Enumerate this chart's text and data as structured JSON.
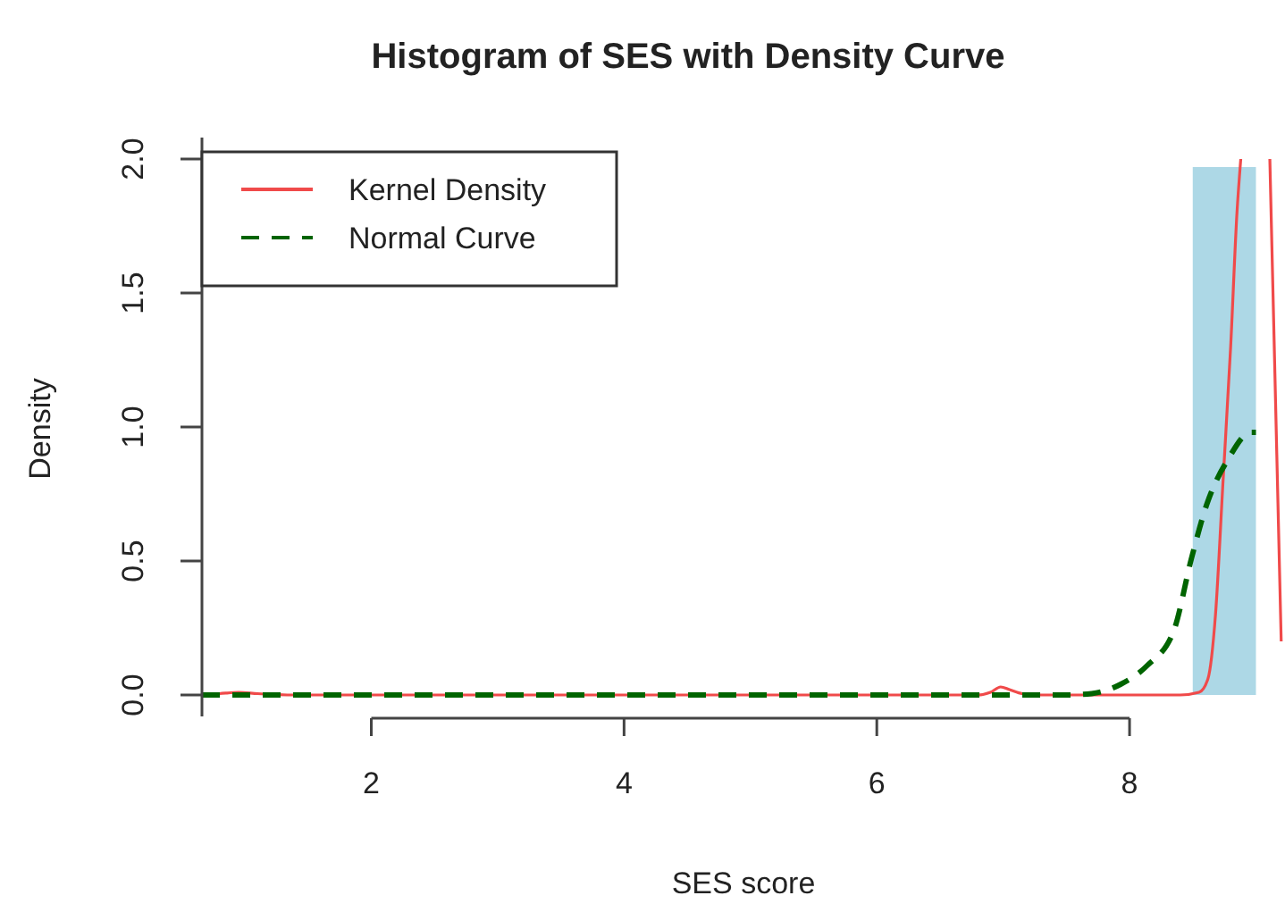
{
  "chart_data": {
    "type": "histogram",
    "title": "Histogram of SES with Density Curve",
    "xlabel": "SES score",
    "ylabel": "Density",
    "bins": [
      8.5,
      9.0
    ],
    "values": [
      1.97
    ],
    "color": "#add8e6",
    "xlim": [
      0.66,
      9.23
    ],
    "ylim": [
      -0.08,
      2.08
    ],
    "xticks": [
      2,
      4,
      6,
      8
    ],
    "yticks": [
      {
        "value": 0,
        "label": "0.0"
      },
      {
        "value": 0.5,
        "label": "0.5"
      },
      {
        "value": 1,
        "label": "1.0"
      },
      {
        "value": 1.5,
        "label": "1.5"
      },
      {
        "value": 2,
        "label": "2.0"
      }
    ],
    "grid": false,
    "legend": "top left",
    "series": [
      {
        "name": "Kernel Density",
        "type": "line",
        "color": "#f04a4a",
        "line_style": "solid",
        "x": [
          0.66,
          0.8,
          0.95,
          1.1,
          1.4,
          2,
          3,
          4,
          5,
          6,
          6.8,
          6.9,
          6.98,
          7.05,
          7.15,
          7.3,
          7.5,
          8,
          8.4,
          8.55,
          8.62,
          8.68,
          8.74,
          8.8,
          8.85,
          8.88,
          8.95,
          9.05,
          9.11,
          9.15,
          9.2
        ],
        "values": [
          0,
          0.005,
          0.01,
          0.005,
          0,
          0,
          0,
          0,
          0,
          0,
          0,
          0.01,
          0.03,
          0.02,
          0.005,
          0,
          0,
          0,
          0,
          0.01,
          0.06,
          0.3,
          0.8,
          1.3,
          1.8,
          2.0,
          null,
          null,
          2.0,
          1.2,
          0.2
        ]
      },
      {
        "name": "Normal Curve",
        "type": "line",
        "color": "#006400",
        "line_style": "dashed",
        "x": [
          0.66,
          2,
          4,
          6,
          7,
          7.5,
          7.7,
          7.93,
          8.14,
          8.35,
          8.49,
          8.61,
          8.78,
          8.96,
          9.0
        ],
        "values": [
          0,
          0,
          0,
          0,
          0,
          0,
          0.005,
          0.04,
          0.11,
          0.24,
          0.51,
          0.71,
          0.88,
          0.98,
          0.98
        ]
      }
    ]
  }
}
